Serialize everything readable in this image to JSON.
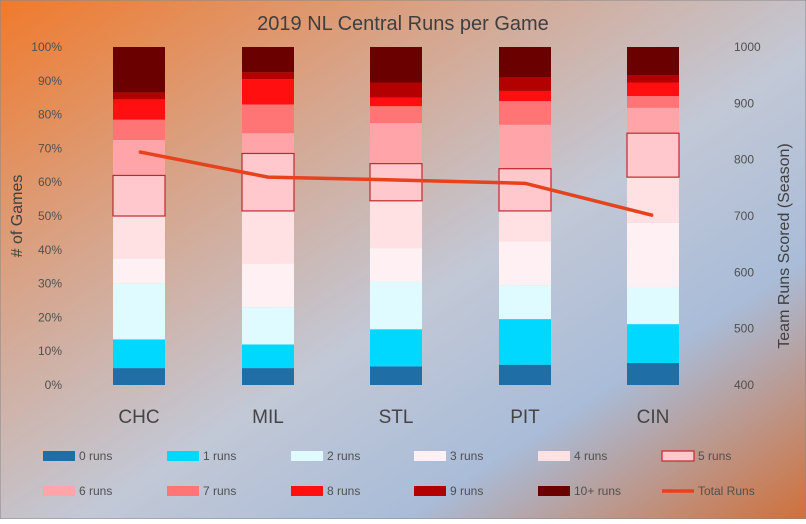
{
  "chart_data": {
    "type": "bar",
    "stacked": true,
    "title": "2019 NL Central Runs per Game",
    "ylabel": "# of Games",
    "y2label": "Team Runs Scored (Season)",
    "ylim": [
      0,
      100
    ],
    "y2lim": [
      400,
      1000
    ],
    "yticks": [
      "0%",
      "10%",
      "20%",
      "30%",
      "40%",
      "50%",
      "60%",
      "70%",
      "80%",
      "90%",
      "100%"
    ],
    "y2ticks": [
      "400",
      "500",
      "600",
      "700",
      "800",
      "900",
      "1000"
    ],
    "categories": [
      "CHC",
      "MIL",
      "STL",
      "PIT",
      "CIN"
    ],
    "series": [
      {
        "name": "0 runs",
        "color": "#1f6fa6",
        "values": [
          5.0,
          5.0,
          5.5,
          6.0,
          6.5
        ]
      },
      {
        "name": "1 runs",
        "color": "#00d8ff",
        "values": [
          8.5,
          7.0,
          11.0,
          13.5,
          11.5
        ]
      },
      {
        "name": "2 runs",
        "color": "#e0fbff",
        "values": [
          16.5,
          11.0,
          14.0,
          10.0,
          11.0
        ]
      },
      {
        "name": "3 runs",
        "color": "#fff1f3",
        "values": [
          7.5,
          13.0,
          10.0,
          13.0,
          19.0
        ]
      },
      {
        "name": "4 runs",
        "color": "#ffe1e4",
        "values": [
          12.5,
          15.5,
          14.0,
          9.0,
          13.5
        ]
      },
      {
        "name": "5 runs",
        "color": "#ffc8cc",
        "values": [
          12.0,
          17.0,
          11.0,
          12.5,
          13.0
        ],
        "bordered": true
      },
      {
        "name": "6 runs",
        "color": "#ffa4a8",
        "values": [
          10.5,
          6.0,
          12.0,
          13.0,
          7.5
        ]
      },
      {
        "name": "7 runs",
        "color": "#ff7474",
        "values": [
          6.0,
          8.5,
          5.0,
          7.0,
          3.5
        ]
      },
      {
        "name": "8 runs",
        "color": "#ff0f0f",
        "values": [
          6.0,
          7.5,
          2.5,
          3.0,
          4.0
        ]
      },
      {
        "name": "9 runs",
        "color": "#b30000",
        "values": [
          2.0,
          2.0,
          4.5,
          4.0,
          2.0
        ]
      },
      {
        "name": "10+ runs",
        "color": "#6a0000",
        "values": [
          13.5,
          7.5,
          10.5,
          9.0,
          8.5
        ]
      }
    ],
    "line_series": {
      "name": "Total Runs",
      "color": "#e8421c",
      "axis": "secondary",
      "values": [
        814,
        769,
        764,
        758,
        701
      ]
    },
    "legend_position": "bottom",
    "grid": false
  }
}
